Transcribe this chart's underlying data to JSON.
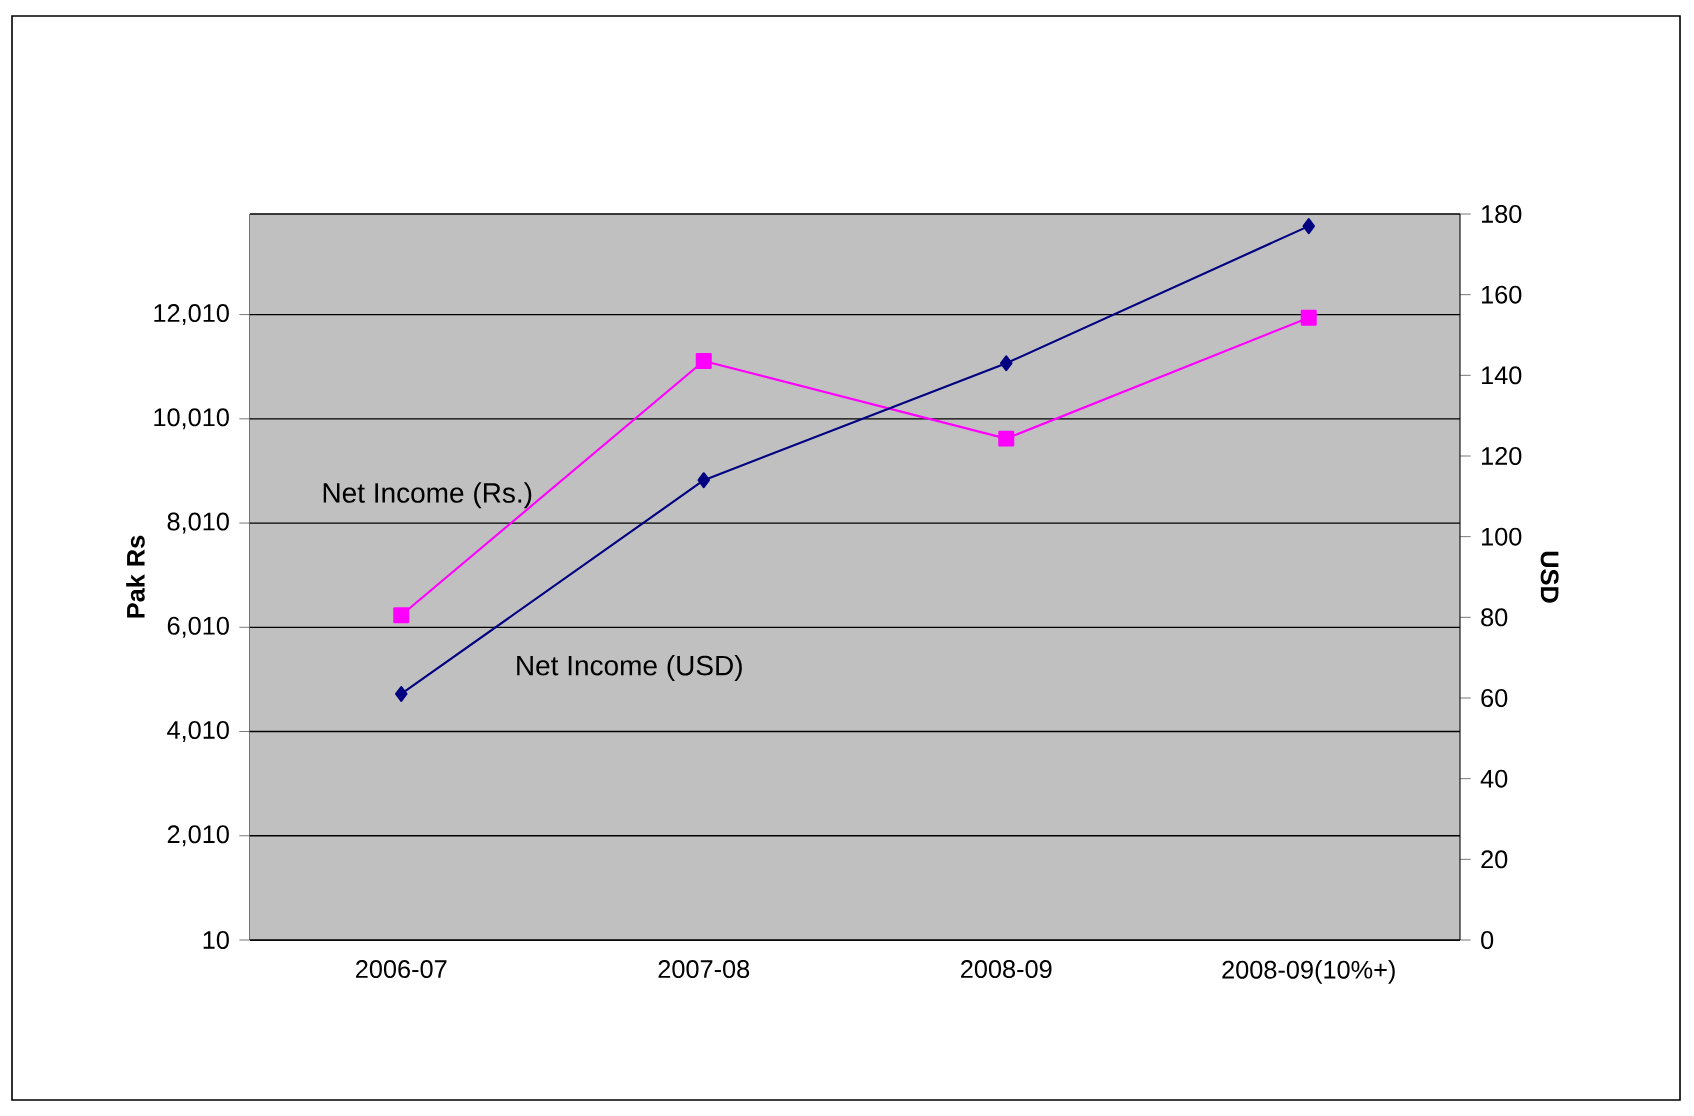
{
  "chart_data": {
    "type": "line",
    "categories": [
      "2006-07",
      "2007-08",
      "2008-09",
      "2008-09(10%+)"
    ],
    "series": [
      {
        "name": "Net Income (Rs.)",
        "color": "#ff00ff",
        "marker": "square",
        "values": [
          6240,
          11120,
          9630,
          11950
        ]
      },
      {
        "name": "Net Income (USD)",
        "color": "#000080",
        "marker": "diamond",
        "axis": "y2",
        "values": [
          61,
          114,
          143,
          177
        ]
      }
    ],
    "ylabel": "Pak Rs",
    "y2label": "USD",
    "ylim": [
      10,
      13940
    ],
    "yticks": [
      10,
      {
        "value": 2010,
        "label": "2,010"
      },
      {
        "value": 4010,
        "label": "4,010"
      },
      {
        "value": 6010,
        "label": "6,010"
      },
      {
        "value": 8010,
        "label": "8,010"
      },
      {
        "value": 10010,
        "label": "10,010"
      },
      {
        "value": 12010,
        "label": "12,010"
      }
    ],
    "y2lim": [
      0,
      180
    ],
    "y2ticks": [
      0,
      20,
      40,
      60,
      80,
      100,
      120,
      140,
      160,
      180
    ],
    "grid": "y",
    "line_style": "solid"
  }
}
